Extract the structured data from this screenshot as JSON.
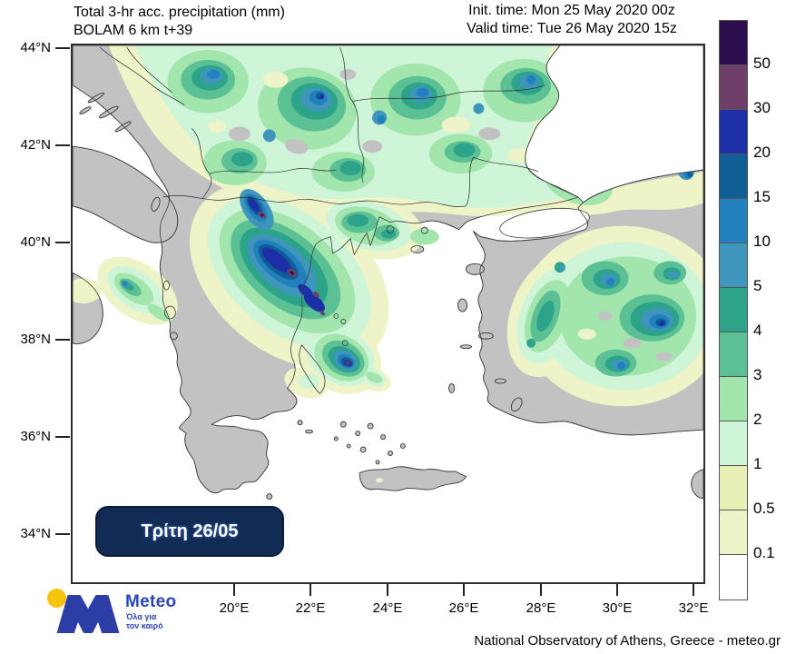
{
  "header": {
    "title_line1": "Total 3-hr acc. precipitation (mm)",
    "title_line2": "BOLAM 6 km t+39",
    "init_time": "Init. time: Mon 25 May 2020 00z",
    "valid_time": "Valid time: Tue 26 May 2020 15z"
  },
  "map": {
    "date_badge_label": "Τρίτη 26/05",
    "lat_labels": [
      "44°N",
      "42°N",
      "40°N",
      "38°N",
      "36°N",
      "34°N"
    ],
    "lon_labels": [
      "20°E",
      "22°E",
      "24°E",
      "26°E",
      "28°E",
      "30°E",
      "32°E"
    ],
    "land_color": "#c2c2c2",
    "sea_color": "#ffffff",
    "badge_bg": "#122b55"
  },
  "legend": {
    "unit": "mm",
    "colors": [
      "#2d0e4e",
      "#6e3f68",
      "#1c2fa6",
      "#0f5e95",
      "#2180bd",
      "#3e96bd",
      "#2da48a",
      "#5bc093",
      "#a2e5ad",
      "#cff5d8",
      "#e7efb5",
      "#eef3c8",
      "#ffffff"
    ],
    "labels": [
      "50",
      "30",
      "20",
      "15",
      "10",
      "5",
      "4",
      "3",
      "2",
      "1",
      "0.5",
      "0.1"
    ]
  },
  "logo": {
    "brand": "Meteo",
    "tagline_line1": "Όλα για",
    "tagline_line2": "τον καιρό",
    "brand_blue": "#2b46b4",
    "m_blue": "#2d3da6",
    "brand_yellow": "#f6c40e"
  },
  "footer": {
    "attribution": "National Observatory of Athens, Greece - meteo.gr"
  }
}
